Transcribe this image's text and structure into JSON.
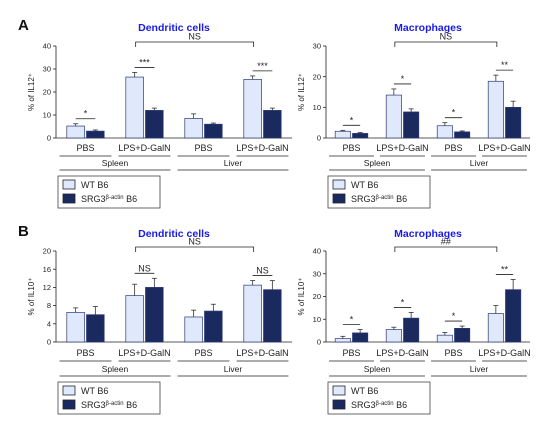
{
  "colors": {
    "wt": "#dfe9fb",
    "srg3": "#1b2a5e",
    "title": "#1a1ae6",
    "axis": "#222222"
  },
  "legend": {
    "wt": "WT B6",
    "srg3_prefix": "SRG3",
    "srg3_sup": "β-actin",
    "srg3_suffix": " B6"
  },
  "chart_data": [
    {
      "id": "A-dc",
      "panel": "A",
      "type": "bar",
      "title": "Dendritic cells",
      "ylabel": "% of IL12⁺",
      "ylim": [
        0,
        40
      ],
      "yticks": [
        0,
        10,
        20,
        30,
        40
      ],
      "categories": [
        "PBS",
        "LPS+D-GalN",
        "PBS",
        "LPS+D-GalN"
      ],
      "groups": [
        "Spleen",
        "Liver"
      ],
      "series": [
        {
          "name": "WT B6",
          "values": [
            5.2,
            26.5,
            8.5,
            25.5
          ],
          "errors": [
            1.0,
            2.0,
            2.0,
            1.5
          ]
        },
        {
          "name": "SRG3β-actin B6",
          "values": [
            3.0,
            12.0,
            6.0,
            12.0
          ],
          "errors": [
            0.5,
            1.0,
            0.5,
            1.0
          ]
        }
      ],
      "within": [
        "*",
        "***",
        "",
        "***"
      ],
      "across": {
        "label": "NS",
        "from": 1,
        "to": 3
      }
    },
    {
      "id": "A-mac",
      "panel": "A",
      "type": "bar",
      "title": "Macrophages",
      "ylabel": "% of IL12⁺",
      "ylim": [
        0,
        30
      ],
      "yticks": [
        0,
        10,
        20,
        30
      ],
      "categories": [
        "PBS",
        "LPS+D-GalN",
        "PBS",
        "LPS+D-GalN"
      ],
      "groups": [
        "Spleen",
        "Liver"
      ],
      "series": [
        {
          "name": "WT B6",
          "values": [
            2.2,
            14.0,
            4.0,
            18.5
          ],
          "errors": [
            0.3,
            2.0,
            1.0,
            2.0
          ]
        },
        {
          "name": "SRG3β-actin B6",
          "values": [
            1.5,
            8.5,
            2.0,
            10.0
          ],
          "errors": [
            0.3,
            1.0,
            0.3,
            2.0
          ]
        }
      ],
      "within": [
        "*",
        "*",
        "*",
        "**"
      ],
      "across": {
        "label": "NS",
        "from": 1,
        "to": 3
      }
    },
    {
      "id": "B-dc",
      "panel": "B",
      "type": "bar",
      "title": "Dendritic cells",
      "ylabel": "% of IL10⁺",
      "ylim": [
        0,
        20
      ],
      "yticks": [
        0,
        4,
        8,
        12,
        16,
        20
      ],
      "categories": [
        "PBS",
        "LPS+D-GalN",
        "PBS",
        "LPS+D-GalN"
      ],
      "groups": [
        "Spleen",
        "Liver"
      ],
      "series": [
        {
          "name": "WT B6",
          "values": [
            6.5,
            10.2,
            5.5,
            12.5
          ],
          "errors": [
            1.0,
            2.5,
            1.5,
            1.0
          ]
        },
        {
          "name": "SRG3β-actin B6",
          "values": [
            6.0,
            12.0,
            6.8,
            11.5
          ],
          "errors": [
            1.8,
            2.0,
            1.5,
            2.0
          ]
        }
      ],
      "within": [
        "",
        "NS",
        "",
        "NS"
      ],
      "across": {
        "label": "NS",
        "from": 1,
        "to": 3
      }
    },
    {
      "id": "B-mac",
      "panel": "B",
      "type": "bar",
      "title": "Macrophages",
      "ylabel": "% of IL10⁺",
      "ylim": [
        0,
        40
      ],
      "yticks": [
        0,
        10,
        20,
        30,
        40
      ],
      "categories": [
        "PBS",
        "LPS+D-GalN",
        "PBS",
        "LPS+D-GalN"
      ],
      "groups": [
        "Spleen",
        "Liver"
      ],
      "series": [
        {
          "name": "WT B6",
          "values": [
            1.5,
            5.5,
            3.0,
            12.5
          ],
          "errors": [
            1.0,
            1.0,
            1.2,
            3.5
          ]
        },
        {
          "name": "SRG3β-actin B6",
          "values": [
            4.0,
            10.5,
            6.0,
            23.0
          ],
          "errors": [
            1.5,
            2.5,
            1.0,
            4.5
          ]
        }
      ],
      "within": [
        "*",
        "*",
        "*",
        "**"
      ],
      "across": {
        "label": "##",
        "from": 1,
        "to": 3
      }
    }
  ]
}
